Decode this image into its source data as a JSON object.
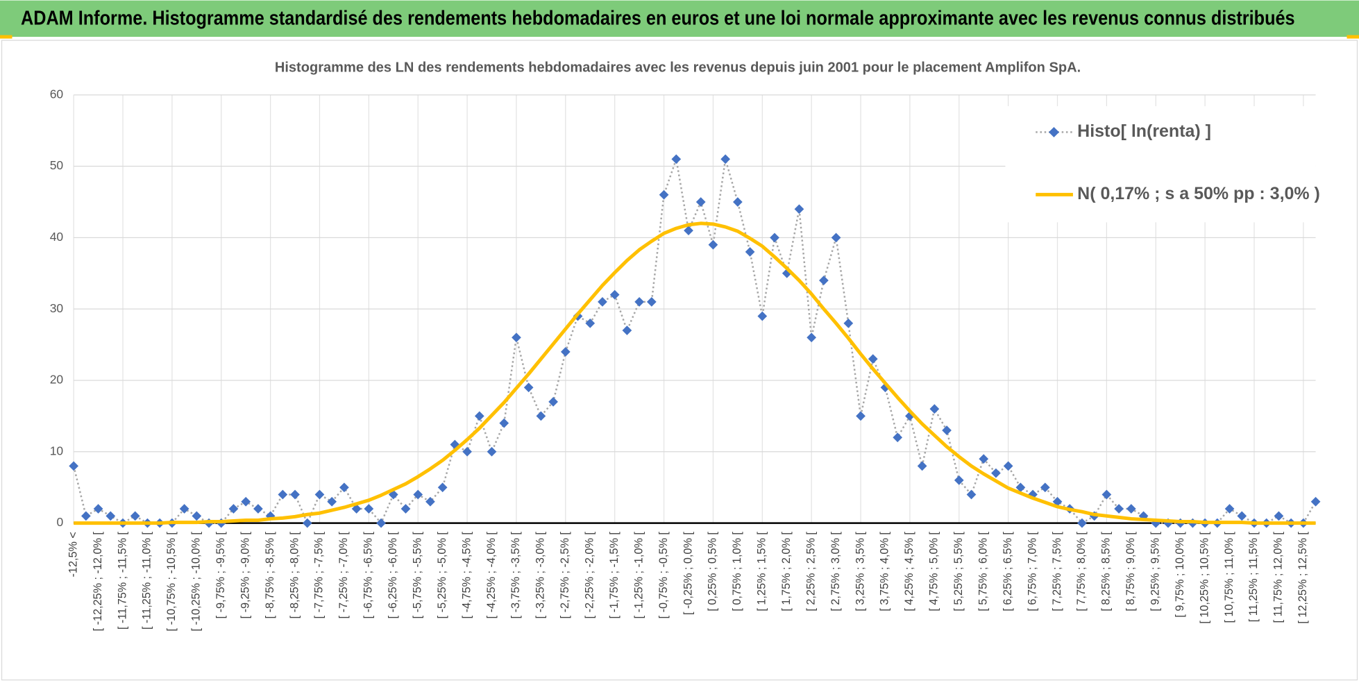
{
  "banner": "ADAM Informe. Histogramme standardisé des rendements hebdomadaires en euros et une loi normale approximante avec les revenus connus distribués",
  "chart_data": {
    "type": "line",
    "title": "Histogramme  des LN des rendements  hebdomadaires avec les revenus depuis juin 2001  pour le placement Amplifon SpA.",
    "categories": [
      "-12,5% <",
      null,
      "[ -12,25% ; -12,0% [",
      null,
      "[ -11,75% ; -11,5% [",
      null,
      "[ -11,25% ; -11,0% [",
      null,
      "[ -10,75% ; -10,5% [",
      null,
      "[ -10,25% ; -10,0% [",
      null,
      "[ -9,75% ; -9,5% [",
      null,
      "[ -9,25% ; -9,0% [",
      null,
      "[ -8,75% ; -8,5% [",
      null,
      "[ -8,25% ; -8,0% [",
      null,
      "[ -7,75% ; -7,5% [",
      null,
      "[ -7,25% ; -7,0% [",
      null,
      "[ -6,75% ; -6,5% [",
      null,
      "[ -6,25% ; -6,0% [",
      null,
      "[ -5,75% ; -5,5% [",
      null,
      "[ -5,25% ; -5,0% [",
      null,
      "[ -4,75% ; -4,5% [",
      null,
      "[ -4,25% ; -4,0% [",
      null,
      "[ -3,75% ; -3,5% [",
      null,
      "[ -3,25% ; -3,0% [",
      null,
      "[ -2,75% ; -2,5% [",
      null,
      "[ -2,25% ; -2,0% [",
      null,
      "[ -1,75% ; -1,5% [",
      null,
      "[ -1,25% ; -1,0% [",
      null,
      "[ -0,75% ; -0,5% [",
      null,
      "[ -0,25% ; 0,0% [",
      null,
      "[ 0,25% ; 0,5% [",
      null,
      "[ 0,75% ; 1,0% [",
      null,
      "[ 1,25% ; 1,5% [",
      null,
      "[ 1,75% ; 2,0% [",
      null,
      "[ 2,25% ; 2,5% [",
      null,
      "[ 2,75% ; 3,0% [",
      null,
      "[ 3,25% ; 3,5% [",
      null,
      "[ 3,75% ; 4,0% [",
      null,
      "[ 4,25% ; 4,5% [",
      null,
      "[ 4,75% ; 5,0% [",
      null,
      "[ 5,25% ; 5,5% [",
      null,
      "[ 5,75% ; 6,0% [",
      null,
      "[ 6,25% ; 6,5% [",
      null,
      "[ 6,75% ; 7,0% [",
      null,
      "[ 7,25% ; 7,5% [",
      null,
      "[ 7,75% ; 8,0% [",
      null,
      "[ 8,25% ; 8,5% [",
      null,
      "[ 8,75% ; 9,0% [",
      null,
      "[ 9,25% ; 9,5% [",
      null,
      "[ 9,75% ; 10,0% [",
      null,
      "[ 10,25% ; 10,5% [",
      null,
      "[ 10,75% ; 11,0% [",
      null,
      "[ 11,25% ; 11,5% [",
      null,
      "[ 11,75% ; 12,0% [",
      null,
      "[ 12,25% ; 12,5% [",
      null
    ],
    "series": [
      {
        "name": "Histo[ ln(renta) ]",
        "color": "#4472c4",
        "line_color": "#a6a6a6",
        "values": [
          8,
          1,
          2,
          1,
          0,
          1,
          0,
          0,
          0,
          2,
          1,
          0,
          0,
          2,
          3,
          2,
          1,
          4,
          4,
          0,
          4,
          3,
          5,
          2,
          2,
          0,
          4,
          2,
          4,
          3,
          5,
          11,
          10,
          15,
          10,
          14,
          26,
          19,
          15,
          17,
          24,
          29,
          28,
          31,
          32,
          27,
          31,
          31,
          46,
          51,
          41,
          45,
          39,
          51,
          45,
          38,
          29,
          40,
          35,
          44,
          26,
          34,
          40,
          28,
          15,
          23,
          19,
          12,
          15,
          8,
          16,
          13,
          6,
          4,
          9,
          7,
          8,
          5,
          4,
          5,
          3,
          2,
          0,
          1,
          4,
          2,
          2,
          1,
          0,
          0,
          0,
          0,
          0,
          0,
          2,
          1,
          0,
          0,
          1,
          0,
          0,
          3
        ]
      },
      {
        "name": "N( 0,17% ; s a 50% pp : 3,0% )",
        "color": "#ffc000",
        "values": [
          0,
          0,
          0,
          0,
          0,
          0,
          0,
          0,
          0.1,
          0.1,
          0.1,
          0.2,
          0.2,
          0.3,
          0.4,
          0.4,
          0.6,
          0.7,
          0.9,
          1.2,
          1.4,
          1.8,
          2.2,
          2.7,
          3.2,
          3.9,
          4.7,
          5.5,
          6.5,
          7.6,
          8.8,
          10.2,
          11.7,
          13.3,
          15.1,
          16.9,
          18.9,
          20.9,
          23.0,
          25.1,
          27.2,
          29.3,
          31.3,
          33.3,
          35.1,
          36.8,
          38.3,
          39.5,
          40.6,
          41.3,
          41.8,
          42.0,
          41.9,
          41.5,
          40.9,
          39.9,
          38.8,
          37.3,
          35.7,
          34.0,
          32.1,
          30.0,
          28.0,
          25.9,
          23.7,
          21.6,
          19.6,
          17.6,
          15.7,
          13.9,
          12.3,
          10.7,
          9.3,
          8.0,
          6.9,
          5.9,
          4.9,
          4.2,
          3.5,
          2.9,
          2.3,
          1.9,
          1.6,
          1.2,
          1.0,
          0.8,
          0.6,
          0.5,
          0.4,
          0.3,
          0.2,
          0.2,
          0.1,
          0.1,
          0.1,
          0.1,
          0,
          0,
          0,
          0,
          0,
          0
        ]
      }
    ],
    "ylim": [
      0,
      60
    ],
    "yticks": [
      0,
      10,
      20,
      30,
      40,
      50,
      60
    ],
    "grid": true,
    "legend": "top-right"
  }
}
